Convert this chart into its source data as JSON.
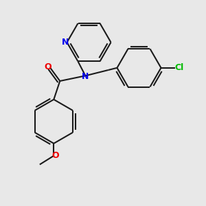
{
  "bg_color": "#e8e8e8",
  "bond_color": "#1a1a1a",
  "N_color": "#0000ee",
  "O_color": "#ee0000",
  "Cl_color": "#00bb00",
  "bond_width": 1.5,
  "fig_size": [
    3.0,
    3.0
  ],
  "dpi": 100,
  "xlim": [
    -1.2,
    2.4
  ],
  "ylim": [
    -2.6,
    2.0
  ]
}
